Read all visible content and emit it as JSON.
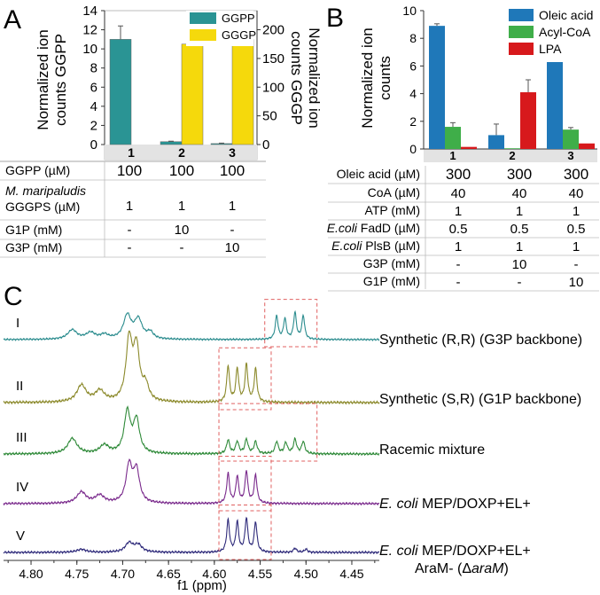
{
  "panel_a": {
    "letter": "A",
    "ylabel_left_line1": "Normalized ion",
    "ylabel_left_line2": "counts GGPP",
    "ylabel_right_line1": "Normalized ion",
    "ylabel_right_line2": "counts GGGP",
    "legend": [
      "GGPP",
      "GGGP"
    ],
    "table_rows": [
      {
        "label": "GGPP (µM)",
        "values": [
          "100",
          "100",
          "100"
        ],
        "big": true
      },
      {
        "label_italic": "M. maripaludis",
        "label": "GGGPS (µM)",
        "values": [
          "1",
          "1",
          "1"
        ]
      },
      {
        "label": "G1P (mM)",
        "values": [
          "-",
          "10",
          "-"
        ]
      },
      {
        "label": "G3P (mM)",
        "values": [
          "-",
          "-",
          "10"
        ]
      }
    ]
  },
  "panel_b": {
    "letter": "B",
    "ylabel_line1": "Normalized ion",
    "ylabel_line2": "counts",
    "legend": [
      "Oleic acid",
      "Acyl-CoA",
      "LPA"
    ],
    "table_rows": [
      {
        "label": "Oleic acid (µM)",
        "values": [
          "300",
          "300",
          "300"
        ],
        "big": true
      },
      {
        "label": "CoA (µM)",
        "values": [
          "40",
          "40",
          "40"
        ]
      },
      {
        "label": "ATP (mM)",
        "values": [
          "1",
          "1",
          "1"
        ]
      },
      {
        "label_italic": "E.coli",
        "label": " FadD (µM)",
        "values": [
          "0.5",
          "0.5",
          "0.5"
        ]
      },
      {
        "label_italic": "E.coli",
        "label": " PlsB  (µM)",
        "values": [
          "1",
          "1",
          "1"
        ]
      },
      {
        "label": "G3P (mM)",
        "values": [
          "-",
          "10",
          "-"
        ]
      },
      {
        "label": "G1P (mM)",
        "values": [
          "-",
          "-",
          "10"
        ]
      }
    ]
  },
  "panel_c": {
    "letter": "C",
    "xlabel": "f1 (ppm)",
    "spectra": [
      {
        "numeral": "I",
        "label": "Synthetic (R,R) (G3P backbone)"
      },
      {
        "numeral": "II",
        "label": "Synthetic (S,R) (G1P backbone)"
      },
      {
        "numeral": "III",
        "label": "Racemic mixture"
      },
      {
        "numeral": "IV",
        "label_italic": "E. coli",
        "label": " MEP/DOXP+EL+"
      },
      {
        "numeral": "V",
        "label_italic": "E. coli",
        "label": " MEP/DOXP+EL+",
        "label2_pre": "AraM- (Δ",
        "label2_italic": "araM",
        "label2_post": ")"
      }
    ]
  },
  "chart_data": [
    {
      "type": "bar",
      "panel": "A",
      "categories": [
        "1",
        "2",
        "3"
      ],
      "series": [
        {
          "name": "GGPP",
          "axis": "left",
          "color": "#2a9494",
          "values": [
            11.0,
            0.3,
            0.1
          ],
          "errors": [
            1.4,
            0.05,
            0.05
          ]
        },
        {
          "name": "GGGP",
          "axis": "right",
          "color": "#f5d90c",
          "values": [
            0,
            175,
            183
          ],
          "errors": [
            0,
            2,
            10
          ]
        }
      ],
      "ylim_left": [
        0,
        14
      ],
      "yticks_left": [
        0,
        2,
        4,
        6,
        8,
        10,
        12,
        14
      ],
      "ylim_right": [
        0,
        233.3
      ],
      "yticks_right": [
        0,
        50,
        100,
        150,
        200
      ],
      "legend_position": "top-right"
    },
    {
      "type": "bar",
      "panel": "B",
      "categories": [
        "1",
        "2",
        "3"
      ],
      "series": [
        {
          "name": "Oleic acid",
          "color": "#1f78b9",
          "values": [
            8.9,
            1.0,
            6.6
          ],
          "errors": [
            0.15,
            0.8,
            0.9
          ]
        },
        {
          "name": "Acyl-CoA",
          "color": "#3fae49",
          "values": [
            1.6,
            0.05,
            1.4
          ],
          "errors": [
            0.3,
            0.0,
            0.15
          ]
        },
        {
          "name": "LPA",
          "color": "#d7191c",
          "values": [
            0.15,
            4.1,
            0.4
          ],
          "errors": [
            0.0,
            0.9,
            0.0
          ]
        }
      ],
      "ylim": [
        0,
        10
      ],
      "yticks": [
        0,
        2,
        4,
        6,
        8,
        10
      ],
      "legend_position": "top-right"
    },
    {
      "type": "line",
      "panel": "C",
      "xlabel": "f1 (ppm)",
      "xlim": [
        4.83,
        4.42
      ],
      "xticks": [
        4.8,
        4.75,
        4.7,
        4.65,
        4.6,
        4.55,
        4.5,
        4.45
      ],
      "series": [
        {
          "name": "I",
          "color": "#2b8c8e",
          "peaks": [
            {
              "x": 4.755,
              "h": 0.22,
              "w": 0.006
            },
            {
              "x": 4.735,
              "h": 0.15,
              "w": 0.006
            },
            {
              "x": 4.72,
              "h": 0.1,
              "w": 0.005
            },
            {
              "x": 4.695,
              "h": 0.55,
              "w": 0.005
            },
            {
              "x": 4.683,
              "h": 0.45,
              "w": 0.005
            },
            {
              "x": 4.67,
              "h": 0.15,
              "w": 0.004
            },
            {
              "x": 4.532,
              "h": 0.55,
              "w": 0.0018
            },
            {
              "x": 4.523,
              "h": 0.48,
              "w": 0.0018
            },
            {
              "x": 4.512,
              "h": 0.62,
              "w": 0.0018
            },
            {
              "x": 4.503,
              "h": 0.55,
              "w": 0.0018
            }
          ],
          "box": [
            4.545,
            4.488
          ]
        },
        {
          "name": "II",
          "color": "#8c8a2c",
          "peaks": [
            {
              "x": 4.745,
              "h": 0.28,
              "w": 0.006
            },
            {
              "x": 4.725,
              "h": 0.18,
              "w": 0.006
            },
            {
              "x": 4.693,
              "h": 1.0,
              "w": 0.004
            },
            {
              "x": 4.685,
              "h": 0.85,
              "w": 0.004
            },
            {
              "x": 4.675,
              "h": 0.25,
              "w": 0.004
            },
            {
              "x": 4.585,
              "h": 0.6,
              "w": 0.0018
            },
            {
              "x": 4.575,
              "h": 0.55,
              "w": 0.0018
            },
            {
              "x": 4.565,
              "h": 0.62,
              "w": 0.0018
            },
            {
              "x": 4.555,
              "h": 0.55,
              "w": 0.0018
            }
          ],
          "box": [
            4.595,
            4.538
          ]
        },
        {
          "name": "III",
          "color": "#2f8a39",
          "peaks": [
            {
              "x": 4.755,
              "h": 0.28,
              "w": 0.006
            },
            {
              "x": 4.72,
              "h": 0.15,
              "w": 0.006
            },
            {
              "x": 4.695,
              "h": 0.75,
              "w": 0.004
            },
            {
              "x": 4.685,
              "h": 0.6,
              "w": 0.004
            },
            {
              "x": 4.585,
              "h": 0.25,
              "w": 0.002
            },
            {
              "x": 4.575,
              "h": 0.22,
              "w": 0.002
            },
            {
              "x": 4.565,
              "h": 0.26,
              "w": 0.002
            },
            {
              "x": 4.555,
              "h": 0.22,
              "w": 0.002
            },
            {
              "x": 4.532,
              "h": 0.22,
              "w": 0.002
            },
            {
              "x": 4.522,
              "h": 0.2,
              "w": 0.002
            },
            {
              "x": 4.512,
              "h": 0.26,
              "w": 0.002
            },
            {
              "x": 4.503,
              "h": 0.22,
              "w": 0.002
            }
          ],
          "box": [
            4.595,
            4.488
          ]
        },
        {
          "name": "IV",
          "color": "#7a2a8c",
          "peaks": [
            {
              "x": 4.745,
              "h": 0.22,
              "w": 0.006
            },
            {
              "x": 4.725,
              "h": 0.15,
              "w": 0.006
            },
            {
              "x": 4.693,
              "h": 0.72,
              "w": 0.004
            },
            {
              "x": 4.685,
              "h": 0.62,
              "w": 0.004
            },
            {
              "x": 4.585,
              "h": 0.58,
              "w": 0.0018
            },
            {
              "x": 4.575,
              "h": 0.52,
              "w": 0.0018
            },
            {
              "x": 4.565,
              "h": 0.62,
              "w": 0.0018
            },
            {
              "x": 4.555,
              "h": 0.55,
              "w": 0.0018
            }
          ],
          "box": [
            4.595,
            4.538
          ]
        },
        {
          "name": "V",
          "color": "#2e2a7a",
          "peaks": [
            {
              "x": 4.745,
              "h": 0.06,
              "w": 0.006
            },
            {
              "x": 4.693,
              "h": 0.18,
              "w": 0.005
            },
            {
              "x": 4.683,
              "h": 0.14,
              "w": 0.005
            },
            {
              "x": 4.585,
              "h": 0.62,
              "w": 0.0018
            },
            {
              "x": 4.575,
              "h": 0.58,
              "w": 0.0018
            },
            {
              "x": 4.565,
              "h": 0.65,
              "w": 0.0018
            },
            {
              "x": 4.555,
              "h": 0.58,
              "w": 0.0018
            },
            {
              "x": 4.512,
              "h": 0.08,
              "w": 0.002
            },
            {
              "x": 4.5,
              "h": 0.06,
              "w": 0.002
            }
          ],
          "box": [
            4.595,
            4.538
          ]
        }
      ]
    }
  ]
}
